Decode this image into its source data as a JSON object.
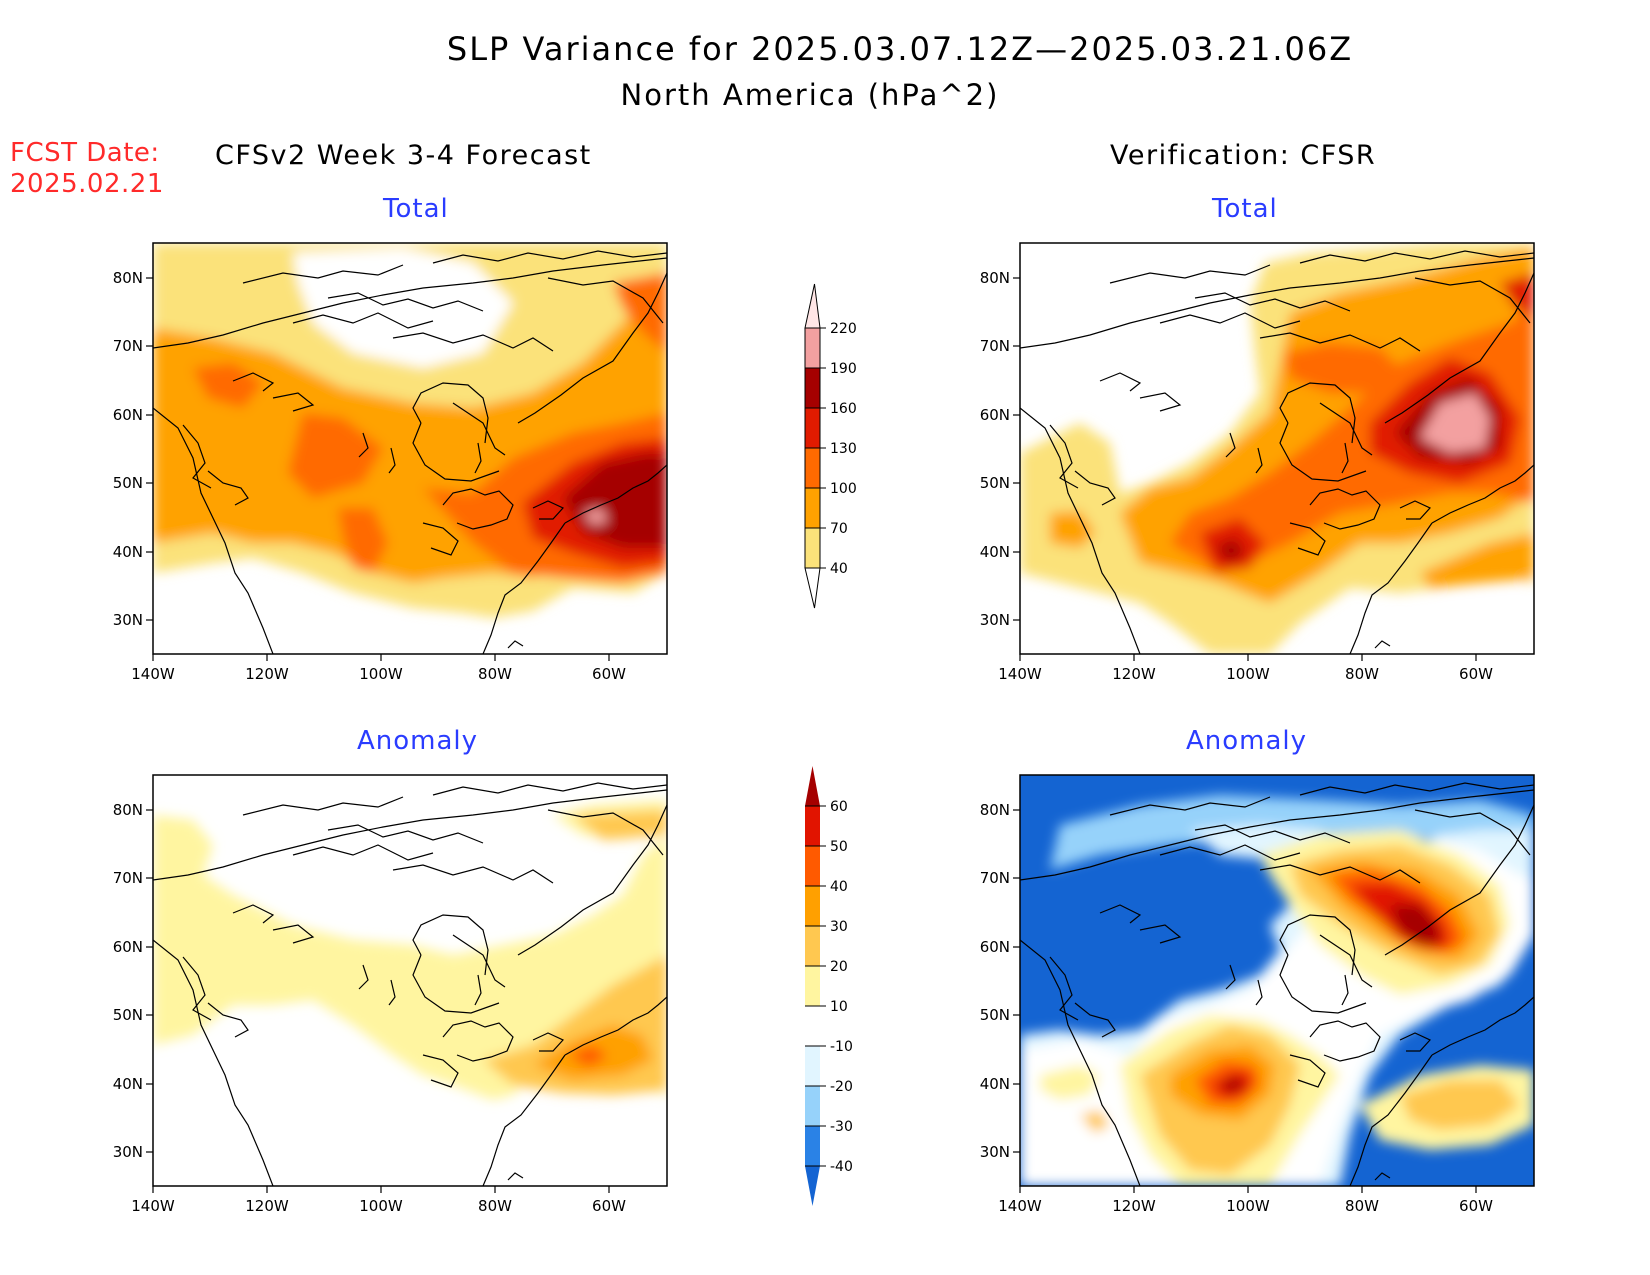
{
  "title": {
    "line1": "SLP Variance for 2025.03.07.12Z—2025.03.21.06Z",
    "line2": "North America (hPa^2)"
  },
  "fcst_date": {
    "label": "FCST Date:",
    "value": "2025.02.21"
  },
  "columns": {
    "left": "CFSv2 Week 3-4 Forecast",
    "right": "Verification: CFSR"
  },
  "panels": {
    "top_left": "Total",
    "top_right": "Total",
    "bottom_left": "Anomaly",
    "bottom_right": "Anomaly"
  },
  "axes": {
    "lon_labels": [
      "140W",
      "120W",
      "100W",
      "80W",
      "60W"
    ],
    "lat_labels": [
      "80N",
      "70N",
      "60N",
      "50N",
      "40N",
      "30N"
    ]
  },
  "total_colorbar": {
    "levels": [
      "40",
      "70",
      "100",
      "130",
      "160",
      "190",
      "220"
    ],
    "colors": [
      "#fbe27a",
      "#ffa200",
      "#ff6a00",
      "#e11b00",
      "#a50000",
      "#f3a0a0",
      "#ffe6e6"
    ]
  },
  "anomaly_colorbar": {
    "levels": [
      "-40",
      "-30",
      "-20",
      "-10",
      "10",
      "20",
      "30",
      "40",
      "50",
      "60"
    ],
    "colors": [
      "#1464d2",
      "#2a82e6",
      "#96d2fa",
      "#e1f5ff",
      "#ffffff",
      "#fff5a0",
      "#ffc850",
      "#ffa000",
      "#ff5a00",
      "#e11400",
      "#a50000"
    ]
  }
}
